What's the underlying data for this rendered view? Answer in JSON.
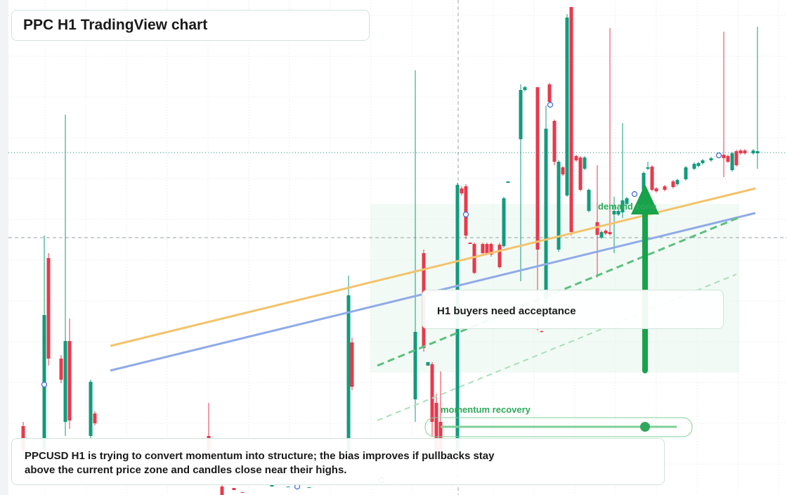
{
  "header": {
    "title": "PPC H1 TradingView chart"
  },
  "annotations": {
    "zone": "demand zone",
    "callout": "H1 buyers need acceptance",
    "slider": "momentum recovery"
  },
  "caption": "PPCUSD H1 is trying to convert momentum into structure; the bias improves if pullbacks stay above the current price zone and candles close near their highs."
}
